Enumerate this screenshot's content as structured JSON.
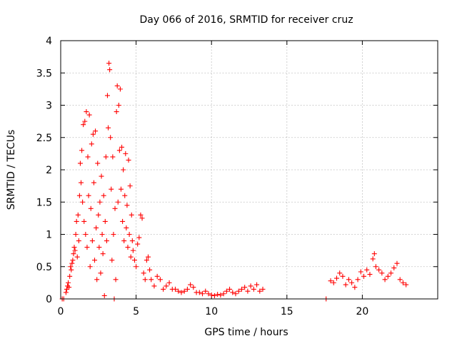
{
  "chart_data": {
    "type": "scatter",
    "title": "Day 066 of 2016, SRMTID for receiver cruz",
    "xlabel": "GPS time / hours",
    "ylabel": "SRMTID / TECUs",
    "xlim": [
      0,
      25
    ],
    "ylim": [
      0,
      4
    ],
    "x_ticks": [
      0,
      5,
      10,
      15,
      20
    ],
    "x_tick_labels": [
      "0",
      "5",
      "10",
      "15",
      "20"
    ],
    "y_ticks": [
      0,
      0.5,
      1,
      1.5,
      2,
      2.5,
      3,
      3.5,
      4
    ],
    "y_tick_labels": [
      "0",
      "0.5",
      "1",
      "1.5",
      "2",
      "2.5",
      "3",
      "3.5",
      "4"
    ],
    "grid": true,
    "marker": "+",
    "color": "#ff0000",
    "series": [
      {
        "name": "SRMTID",
        "points": [
          [
            0.1,
            0.0
          ],
          [
            0.2,
            0.0
          ],
          [
            0.35,
            0.1
          ],
          [
            0.4,
            0.15
          ],
          [
            0.45,
            0.2
          ],
          [
            0.5,
            0.25
          ],
          [
            0.55,
            0.18
          ],
          [
            0.6,
            0.35
          ],
          [
            0.65,
            0.5
          ],
          [
            0.7,
            0.45
          ],
          [
            0.75,
            0.55
          ],
          [
            0.8,
            0.6
          ],
          [
            0.85,
            0.7
          ],
          [
            0.9,
            0.8
          ],
          [
            0.95,
            0.75
          ],
          [
            1.0,
            1.0
          ],
          [
            1.05,
            1.2
          ],
          [
            1.1,
            0.65
          ],
          [
            1.15,
            1.3
          ],
          [
            1.2,
            0.9
          ],
          [
            1.25,
            1.6
          ],
          [
            1.3,
            2.1
          ],
          [
            1.35,
            1.8
          ],
          [
            1.4,
            2.3
          ],
          [
            1.45,
            1.5
          ],
          [
            1.5,
            2.7
          ],
          [
            1.55,
            1.2
          ],
          [
            1.6,
            2.75
          ],
          [
            1.65,
            1.0
          ],
          [
            1.7,
            2.9
          ],
          [
            1.75,
            0.8
          ],
          [
            1.8,
            2.2
          ],
          [
            1.85,
            1.6
          ],
          [
            1.9,
            2.85
          ],
          [
            1.95,
            0.5
          ],
          [
            2.0,
            1.4
          ],
          [
            2.05,
            2.4
          ],
          [
            2.1,
            0.9
          ],
          [
            2.15,
            2.55
          ],
          [
            2.2,
            1.8
          ],
          [
            2.25,
            0.6
          ],
          [
            2.3,
            2.6
          ],
          [
            2.35,
            1.1
          ],
          [
            2.4,
            0.3
          ],
          [
            2.45,
            2.1
          ],
          [
            2.5,
            1.3
          ],
          [
            2.55,
            0.8
          ],
          [
            2.6,
            1.5
          ],
          [
            2.65,
            0.4
          ],
          [
            2.7,
            1.9
          ],
          [
            2.75,
            1.0
          ],
          [
            2.8,
            0.7
          ],
          [
            2.85,
            1.6
          ],
          [
            2.9,
            0.05
          ],
          [
            2.95,
            1.2
          ],
          [
            3.0,
            2.2
          ],
          [
            3.05,
            0.9
          ],
          [
            3.1,
            3.15
          ],
          [
            3.15,
            2.65
          ],
          [
            3.2,
            3.65
          ],
          [
            3.25,
            3.55
          ],
          [
            3.3,
            2.5
          ],
          [
            3.35,
            1.7
          ],
          [
            3.4,
            0.6
          ],
          [
            3.45,
            2.2
          ],
          [
            3.5,
            1.0
          ],
          [
            3.55,
            0.0
          ],
          [
            3.6,
            1.4
          ],
          [
            3.65,
            0.3
          ],
          [
            3.7,
            2.9
          ],
          [
            3.75,
            3.3
          ],
          [
            3.8,
            1.5
          ],
          [
            3.85,
            3.0
          ],
          [
            3.9,
            2.3
          ],
          [
            3.95,
            3.25
          ],
          [
            4.0,
            1.7
          ],
          [
            4.05,
            2.35
          ],
          [
            4.1,
            1.2
          ],
          [
            4.15,
            2.0
          ],
          [
            4.2,
            0.9
          ],
          [
            4.25,
            1.6
          ],
          [
            4.3,
            2.25
          ],
          [
            4.35,
            1.1
          ],
          [
            4.4,
            1.45
          ],
          [
            4.45,
            0.8
          ],
          [
            4.5,
            2.15
          ],
          [
            4.55,
            1.0
          ],
          [
            4.6,
            1.75
          ],
          [
            4.65,
            0.65
          ],
          [
            4.7,
            1.3
          ],
          [
            4.75,
            0.9
          ],
          [
            4.8,
            0.75
          ],
          [
            4.9,
            0.6
          ],
          [
            5.0,
            0.5
          ],
          [
            5.1,
            0.85
          ],
          [
            5.2,
            0.95
          ],
          [
            5.3,
            1.3
          ],
          [
            5.4,
            1.25
          ],
          [
            5.5,
            0.4
          ],
          [
            5.6,
            0.3
          ],
          [
            5.7,
            0.6
          ],
          [
            5.8,
            0.65
          ],
          [
            5.9,
            0.45
          ],
          [
            6.0,
            0.3
          ],
          [
            6.2,
            0.2
          ],
          [
            6.4,
            0.35
          ],
          [
            6.6,
            0.3
          ],
          [
            6.8,
            0.15
          ],
          [
            7.0,
            0.2
          ],
          [
            7.2,
            0.25
          ],
          [
            7.4,
            0.15
          ],
          [
            7.6,
            0.15
          ],
          [
            7.8,
            0.12
          ],
          [
            8.0,
            0.1
          ],
          [
            8.2,
            0.12
          ],
          [
            8.4,
            0.15
          ],
          [
            8.6,
            0.22
          ],
          [
            8.8,
            0.18
          ],
          [
            9.0,
            0.1
          ],
          [
            9.2,
            0.1
          ],
          [
            9.4,
            0.08
          ],
          [
            9.6,
            0.12
          ],
          [
            9.8,
            0.08
          ],
          [
            10.0,
            0.06
          ],
          [
            10.2,
            0.05
          ],
          [
            10.4,
            0.07
          ],
          [
            10.6,
            0.06
          ],
          [
            10.8,
            0.08
          ],
          [
            11.0,
            0.12
          ],
          [
            11.2,
            0.15
          ],
          [
            11.4,
            0.1
          ],
          [
            11.6,
            0.08
          ],
          [
            11.8,
            0.12
          ],
          [
            12.0,
            0.15
          ],
          [
            12.2,
            0.18
          ],
          [
            12.4,
            0.12
          ],
          [
            12.6,
            0.2
          ],
          [
            12.8,
            0.15
          ],
          [
            13.0,
            0.22
          ],
          [
            13.2,
            0.12
          ],
          [
            13.4,
            0.15
          ],
          [
            17.6,
            0.0
          ],
          [
            17.9,
            0.28
          ],
          [
            18.1,
            0.25
          ],
          [
            18.3,
            0.32
          ],
          [
            18.5,
            0.4
          ],
          [
            18.7,
            0.35
          ],
          [
            18.9,
            0.22
          ],
          [
            19.1,
            0.3
          ],
          [
            19.3,
            0.25
          ],
          [
            19.5,
            0.18
          ],
          [
            19.7,
            0.3
          ],
          [
            19.9,
            0.42
          ],
          [
            20.1,
            0.35
          ],
          [
            20.3,
            0.45
          ],
          [
            20.5,
            0.38
          ],
          [
            20.7,
            0.62
          ],
          [
            20.8,
            0.7
          ],
          [
            20.9,
            0.5
          ],
          [
            21.1,
            0.45
          ],
          [
            21.3,
            0.4
          ],
          [
            21.5,
            0.3
          ],
          [
            21.7,
            0.35
          ],
          [
            21.9,
            0.4
          ],
          [
            22.1,
            0.48
          ],
          [
            22.3,
            0.55
          ],
          [
            22.5,
            0.3
          ],
          [
            22.7,
            0.25
          ],
          [
            22.9,
            0.22
          ]
        ]
      }
    ]
  }
}
